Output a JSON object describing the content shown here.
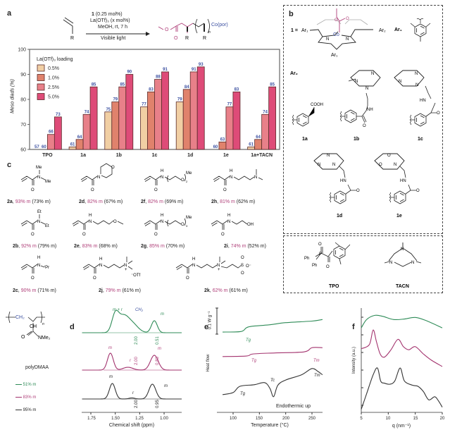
{
  "panels": {
    "a": "a",
    "b": "b",
    "c": "c",
    "d": "d",
    "e": "e",
    "f": "f"
  },
  "scheme": {
    "cond1_bold": "1",
    "cond1": " (0.25 mol%)",
    "cond2": "La(OTf)₃ (x mol%)",
    "cond3": "MeOH, rt, 7 h",
    "cond4": "Visible light",
    "R": "R",
    "O_ester": "O",
    "O_carbonyl": "O",
    "n": "n",
    "co_por": "Co(por)"
  },
  "chart_data": [
    {
      "type": "bar",
      "title": "",
      "ylabel": "Meso diads (%)",
      "xlabel": "",
      "ylim": [
        60,
        100
      ],
      "yticks": [
        "60",
        "70",
        "80",
        "90",
        "100"
      ],
      "legend_title": "La(OTf)₃ loading",
      "legend_position": "top-left",
      "categories": [
        "TPO",
        "1a",
        "1b",
        "1c",
        "1d",
        "1e",
        "1a+TACN"
      ],
      "series": [
        {
          "name": "0.5%",
          "color": "#f1cfa4",
          "values": [
            57,
            61,
            75,
            77,
            79,
            60,
            61
          ]
        },
        {
          "name": "1.0%",
          "color": "#e0826c",
          "values": [
            60,
            64,
            79,
            83,
            84,
            63,
            64
          ]
        },
        {
          "name": "2.5%",
          "color": "#e88089",
          "values": [
            66,
            74,
            85,
            88,
            91,
            77,
            74
          ]
        },
        {
          "name": "5.0%",
          "color": "#de4b78",
          "values": [
            73,
            85,
            90,
            91,
            93,
            83,
            85
          ]
        }
      ],
      "label_color": "#3a4fa0"
    },
    {
      "type": "line",
      "name": "1H NMR",
      "xlabel": "Chemical shift (ppm)",
      "xlim": [
        1.84,
        0.82
      ],
      "xticks": [
        "1.75",
        "1.50",
        "1.25",
        "1.00"
      ],
      "series": [
        {
          "name": "51% m",
          "color": "#2e8b57",
          "peaks": [
            [
              1.5,
              25,
              0.035
            ],
            [
              1.42,
              20,
              0.05
            ],
            [
              1.33,
              13,
              0.06
            ],
            [
              1.1,
              17,
              0.03
            ]
          ],
          "integrals": [
            "2.00",
            "0.51"
          ],
          "annotations": [
            "m + r",
            "CH₂",
            "m"
          ]
        },
        {
          "name": "83% m",
          "color": "#a3336e",
          "peaks": [
            [
              1.55,
              24,
              0.03
            ],
            [
              1.37,
              4,
              0.05
            ],
            [
              1.1,
              21,
              0.04
            ]
          ],
          "integrals": [
            "2.00",
            "0.83"
          ],
          "annotations": [
            "m",
            "r",
            "m"
          ]
        },
        {
          "name": "95% m",
          "color": "#333333",
          "peaks": [
            [
              1.53,
              22,
              0.03
            ],
            [
              1.33,
              1.5,
              0.03
            ],
            [
              1.12,
              21,
              0.035
            ]
          ],
          "integrals": [
            "2.00",
            "0.95"
          ],
          "annotations": [
            "m",
            "r",
            "m"
          ]
        }
      ]
    },
    {
      "type": "line",
      "name": "DSC",
      "xlabel": "Temperature (°C)",
      "ylabel": "Heat flow",
      "xlim": [
        80,
        270
      ],
      "xticks": [
        "100",
        "150",
        "200",
        "250"
      ],
      "scale_bar": "0.1 W g⁻¹",
      "note": "Endothermic up",
      "series": [
        {
          "name": "51% m",
          "color": "#2e8b57",
          "points": [
            [
              80,
              7.7
            ],
            [
              115,
              7.75
            ],
            [
              125,
              8.1
            ],
            [
              135,
              8.25
            ],
            [
              170,
              8.4
            ],
            [
              200,
              8.6
            ],
            [
              250,
              8.75
            ],
            [
              270,
              8.9
            ]
          ],
          "annotations": [
            "Tg"
          ]
        },
        {
          "name": "83% m",
          "color": "#a3336e",
          "points": [
            [
              80,
              5.35
            ],
            [
              125,
              5.4
            ],
            [
              138,
              5.6
            ],
            [
              180,
              5.7
            ],
            [
              235,
              5.8
            ],
            [
              250,
              6.2
            ],
            [
              270,
              6.2
            ]
          ],
          "annotations": [
            "Tg",
            "Tm"
          ]
        },
        {
          "name": "95% m",
          "color": "#333333",
          "points": [
            [
              80,
              1.7
            ],
            [
              100,
              1.9
            ],
            [
              113,
              2.5
            ],
            [
              140,
              2.65
            ],
            [
              160,
              2.85
            ],
            [
              170,
              2.3
            ],
            [
              177,
              1.5
            ],
            [
              185,
              2.6
            ],
            [
              200,
              3.1
            ],
            [
              230,
              3.6
            ],
            [
              250,
              4.2
            ],
            [
              262,
              3.9
            ],
            [
              270,
              3.6
            ]
          ],
          "annotations": [
            "Tg",
            "Tc",
            "Tm"
          ]
        }
      ]
    },
    {
      "type": "line",
      "name": "SAXS/WAXS",
      "xlabel": "q (nm⁻¹)",
      "ylabel": "Intensity (a.u.)",
      "xlim": [
        5,
        20
      ],
      "xticks": [
        "5",
        "10",
        "15",
        "20"
      ],
      "series": [
        {
          "name": "51% m",
          "color": "#2e8b57",
          "points": [
            [
              5,
              8.1
            ],
            [
              6,
              8.9
            ],
            [
              7.5,
              9.3
            ],
            [
              9,
              9.2
            ],
            [
              11,
              8.9
            ],
            [
              13,
              8.95
            ],
            [
              15,
              9.1
            ],
            [
              17,
              8.8
            ],
            [
              20,
              8.1
            ]
          ]
        },
        {
          "name": "83% m",
          "color": "#a3336e",
          "points": [
            [
              5,
              6.1
            ],
            [
              6.5,
              6.5
            ],
            [
              7.2,
              7.9
            ],
            [
              7.8,
              6.8
            ],
            [
              8.5,
              5.6
            ],
            [
              9.3,
              5.3
            ],
            [
              10.5,
              6.0
            ],
            [
              11.8,
              7.0
            ],
            [
              12.8,
              6.3
            ],
            [
              13.8,
              6.0
            ],
            [
              15,
              6.3
            ],
            [
              16.5,
              5.6
            ],
            [
              18,
              5.0
            ],
            [
              20,
              4.4
            ]
          ]
        },
        {
          "name": "95% m",
          "color": "#333333",
          "points": [
            [
              5,
              0.3
            ],
            [
              6,
              1.8
            ],
            [
              7.2,
              3.6
            ],
            [
              8,
              4.25
            ],
            [
              8.6,
              3.0
            ],
            [
              9.3,
              2.8
            ],
            [
              10.3,
              2.7
            ],
            [
              11.2,
              3.0
            ],
            [
              12.2,
              4.25
            ],
            [
              13,
              3.0
            ],
            [
              14.5,
              2.6
            ],
            [
              15.5,
              2.5
            ],
            [
              16.5,
              2.0
            ],
            [
              17.5,
              1.2
            ],
            [
              18.6,
              1.5
            ],
            [
              19.3,
              1.1
            ],
            [
              20,
              0.5
            ]
          ]
        }
      ]
    }
  ],
  "catalysts": {
    "one_eq": "1 =",
    "ar1": "Ar₁",
    "ar2": "Ar₂",
    "co": "Co",
    "n": "N",
    "o": "O",
    "ar1_legend": "Ar₁",
    "ar2_legend": "Ar₂",
    "cooh": "COOH",
    "nh": "NH",
    "hn": "HN",
    "labels": [
      "1a",
      "1b",
      "1c",
      "1d",
      "1e"
    ],
    "tpo": "TPO",
    "tacn": "TACN",
    "ph": "Ph",
    "p": "P"
  },
  "monomers": [
    {
      "id": "2a",
      "iso": "93% m",
      "ref": "(73% m)"
    },
    {
      "id": "2d",
      "iso": "82% m",
      "ref": "(67% m)"
    },
    {
      "id": "2f",
      "iso": "82% m",
      "ref": "(69% m)"
    },
    {
      "id": "2h",
      "iso": "81% m",
      "ref": "(62% m)"
    },
    {
      "id": "2b",
      "iso": "92% m",
      "ref": "(79% m)"
    },
    {
      "id": "2e",
      "iso": "83% m",
      "ref": "(68% m)"
    },
    {
      "id": "2g",
      "iso": "85% m",
      "ref": "(70% m)"
    },
    {
      "id": "2i",
      "iso": "74% m",
      "ref": "(52% m)"
    },
    {
      "id": "2c",
      "iso": "90% m",
      "ref": "(71% m)"
    },
    {
      "id": "2j",
      "iso": "79% m",
      "ref": "(61% m)"
    },
    {
      "id": "2k",
      "iso": "62% m",
      "ref": "(61% m)"
    }
  ],
  "atoms": {
    "me": "Me",
    "et": "Et",
    "ipr": "ⁱPr",
    "h": "H",
    "otf": "⁻OTf",
    "s": "S",
    "ominus": "O⁻",
    "two": "2",
    "three": "3",
    "oh": "OH",
    "plus": "+"
  },
  "polymer": {
    "ch2": "CH₂",
    "ch": "CH",
    "nme2": "NMe₂",
    "o": "O",
    "n": "n",
    "name": "polyDMAA"
  }
}
